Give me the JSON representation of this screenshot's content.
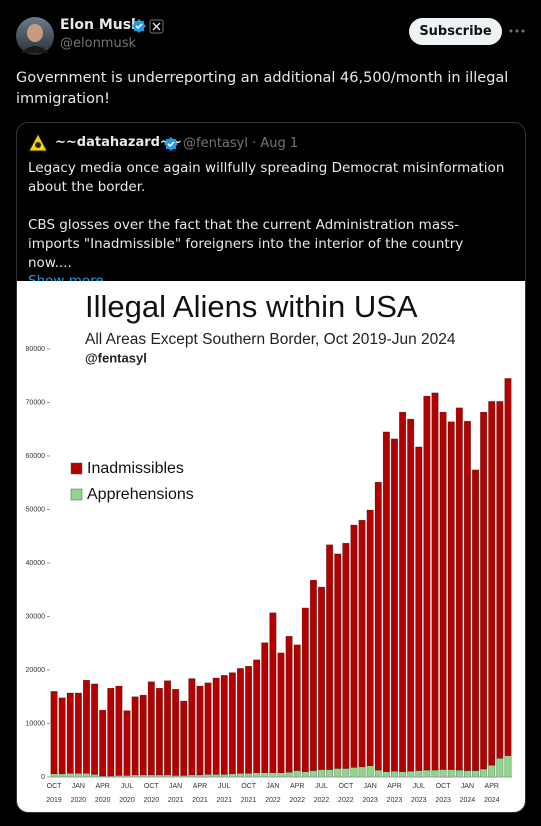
{
  "tweet": {
    "name": "Elon Musk",
    "handle": "@elonmusk",
    "subscribe": "Subscribe",
    "text": "Government is underreporting an additional 46,500/month in illegal immigration!"
  },
  "quote": {
    "name": "~~datahazard~~",
    "handle_date": "@fentasyl · Aug 1",
    "paragraphs": [
      "Legacy media once again willfully spreading Democrat misinformation about the border.",
      "CBS glosses over the fact that the current Administration mass-imports \"Inadmissible\" foreigners into the interior of the country now...."
    ],
    "show_more": "Show more"
  },
  "chart_data": {
    "type": "stacked_bar",
    "title": "Illegal Aliens within USA",
    "subtitle": "All Areas Except Southern Border, Oct 2019-Jun 2024",
    "credit": "@fentasyl",
    "categories": [
      "OCT 2019",
      null,
      null,
      "JAN 2020",
      null,
      null,
      "APR 2020",
      null,
      null,
      "JUL 2020",
      null,
      null,
      "OCT 2020",
      null,
      null,
      "JAN 2021",
      null,
      null,
      "APR 2021",
      null,
      null,
      "JUL 2021",
      null,
      null,
      "OCT 2021",
      null,
      null,
      "JAN 2022",
      null,
      null,
      "APR 2022",
      null,
      null,
      "JUL 2022",
      null,
      null,
      "OCT 2022",
      null,
      null,
      "JAN 2023",
      null,
      null,
      "APR 2023",
      null,
      null,
      "JUL 2023",
      null,
      null,
      "OCT 2023",
      null,
      null,
      "JAN 2024",
      null,
      null,
      "APR 2024",
      null,
      null
    ],
    "series": [
      {
        "name": "Inadmissibles",
        "color": "#b30000",
        "values": [
          15400,
          14200,
          15000,
          15000,
          17400,
          16900,
          12300,
          16400,
          16700,
          12100,
          14600,
          14900,
          17400,
          16200,
          17600,
          16100,
          13900,
          18000,
          16600,
          17100,
          18000,
          18500,
          18900,
          19600,
          20000,
          21100,
          24300,
          29900,
          22400,
          25400,
          23500,
          30600,
          35600,
          34100,
          42000,
          40100,
          42100,
          45300,
          46100,
          47800,
          53800,
          63500,
          62100,
          67200,
          65800,
          60500,
          69900,
          70500,
          66800,
          65000,
          67700,
          65300,
          56200,
          66700,
          68000,
          66700,
          70500
        ]
      },
      {
        "name": "Apprehensions",
        "color": "#8fd68a",
        "values": [
          600,
          600,
          700,
          700,
          700,
          500,
          200,
          200,
          300,
          300,
          400,
          400,
          400,
          400,
          400,
          300,
          300,
          400,
          400,
          500,
          500,
          500,
          600,
          700,
          700,
          800,
          800,
          800,
          800,
          900,
          1200,
          1000,
          1200,
          1400,
          1400,
          1600,
          1600,
          1800,
          1900,
          2100,
          1300,
          1000,
          1100,
          1000,
          1100,
          1200,
          1300,
          1300,
          1400,
          1400,
          1300,
          1200,
          1200,
          1500,
          2200,
          3500,
          4000
        ]
      }
    ],
    "ylim": [
      0,
      80000
    ],
    "yticks": [
      0,
      10000,
      20000,
      30000,
      40000,
      50000,
      60000,
      70000,
      80000
    ],
    "legend": "left",
    "grid": false
  }
}
